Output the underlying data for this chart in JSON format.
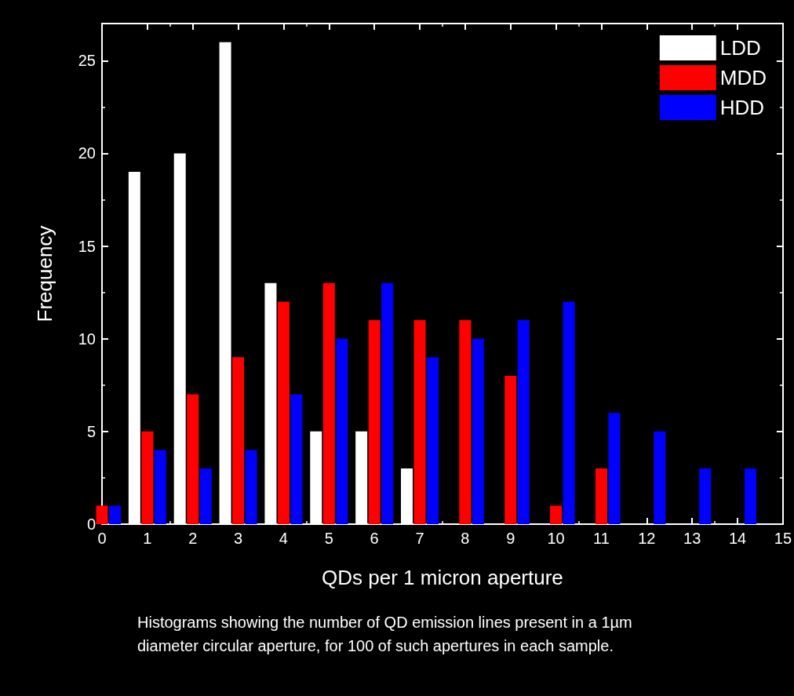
{
  "chart_data": {
    "type": "bar",
    "xlabel": "QDs per 1 micron aperture",
    "ylabel": "Frequency",
    "x": [
      0,
      1,
      2,
      3,
      4,
      5,
      6,
      7,
      8,
      9,
      10,
      11,
      12,
      13,
      14
    ],
    "series": [
      {
        "name": "LDD",
        "color": "#ffffff",
        "values": [
          0,
          19,
          20,
          26,
          13,
          5,
          5,
          3,
          0,
          0,
          0,
          0,
          0,
          0,
          0
        ]
      },
      {
        "name": "MDD",
        "color": "#ff0000",
        "values": [
          1,
          5,
          7,
          9,
          12,
          13,
          11,
          11,
          11,
          8,
          1,
          3,
          0,
          0,
          0
        ]
      },
      {
        "name": "HDD",
        "color": "#0000ff",
        "values": [
          1,
          4,
          3,
          4,
          7,
          10,
          13,
          9,
          10,
          11,
          12,
          6,
          5,
          3,
          3
        ]
      }
    ],
    "xlim": [
      0,
      15
    ],
    "xticks": [
      0,
      1,
      2,
      3,
      4,
      5,
      6,
      7,
      8,
      9,
      10,
      11,
      12,
      13,
      14,
      15
    ],
    "ylim": [
      0,
      27
    ],
    "yticks": [
      0,
      5,
      10,
      15,
      20,
      25
    ],
    "grid": false,
    "legend": "top right",
    "annotations": [
      "Histograms showing the number of QD emission lines present in a 1µm diameter circular aperture, for 100 of such apertures in each sample."
    ]
  }
}
